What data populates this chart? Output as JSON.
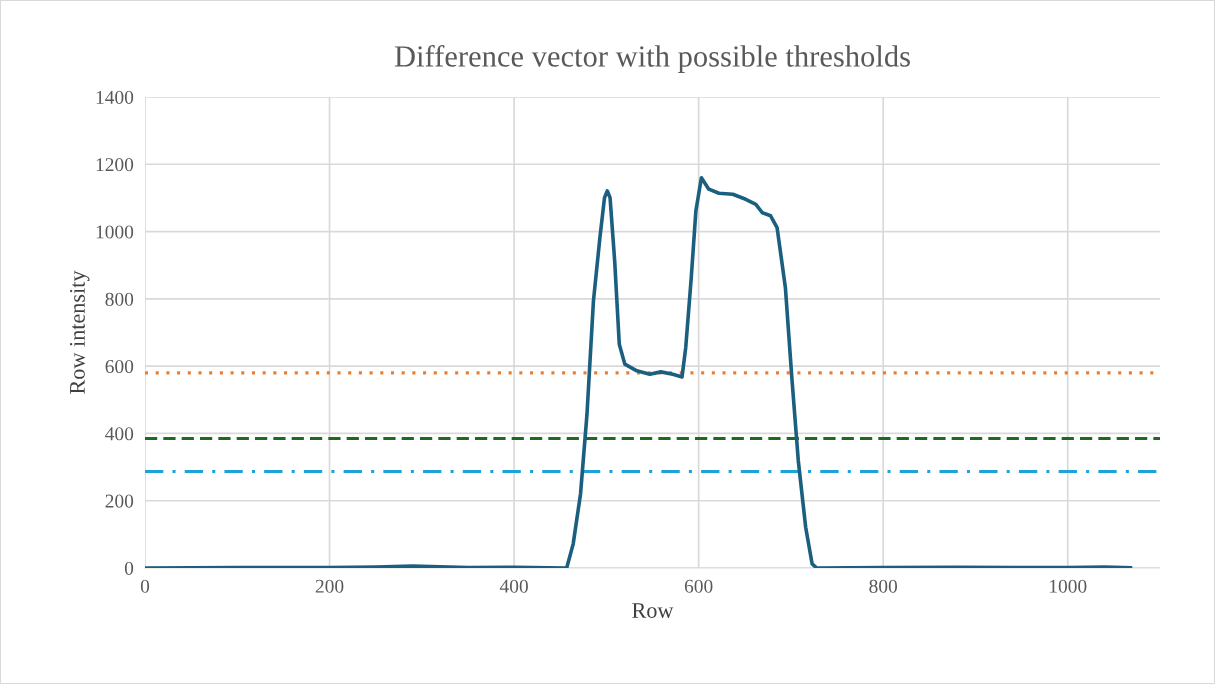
{
  "chart_data": {
    "type": "line",
    "title": "Difference vector with possible thresholds",
    "xlabel": "Row",
    "ylabel": "Row intensity",
    "xlim": [
      0,
      1100
    ],
    "xticks": [
      0,
      200,
      400,
      600,
      800,
      1000
    ],
    "ylim": [
      0,
      1400
    ],
    "yticks": [
      0,
      200,
      400,
      600,
      800,
      1000,
      1200,
      1400
    ],
    "grid": true,
    "legend": false,
    "marker": "none",
    "series": [
      {
        "color": "#1b5f80",
        "line_style": "solid",
        "x": [
          0,
          100,
          200,
          250,
          290,
          350,
          400,
          457,
          464,
          472,
          479,
          486,
          493,
          498,
          501,
          504,
          509,
          514,
          520,
          533,
          547,
          559,
          572,
          582,
          586,
          592,
          597,
          603,
          611,
          622,
          637,
          651,
          662,
          669,
          678,
          685,
          694,
          701,
          708,
          716,
          723,
          728,
          800,
          880,
          1000,
          1040,
          1068
        ],
        "values": [
          0,
          1,
          1,
          3,
          6,
          1,
          2,
          0,
          71,
          220,
          457,
          794,
          982,
          1101,
          1121,
          1101,
          913,
          665,
          606,
          586,
          576,
          583,
          576,
          568,
          655,
          863,
          1061,
          1160,
          1126,
          1114,
          1111,
          1096,
          1081,
          1056,
          1047,
          1012,
          834,
          566,
          319,
          121,
          12,
          0,
          1,
          2,
          1,
          3,
          1
        ]
      }
    ],
    "ref_lines": [
      {
        "axis": "y",
        "value": 580,
        "color": "#ed7d31",
        "line_style": "dotted"
      },
      {
        "axis": "y",
        "value": 385,
        "color": "#1e6b1e",
        "line_style": "dashed"
      },
      {
        "axis": "y",
        "value": 287,
        "color": "#1ea3d8",
        "line_style": "dashdot"
      }
    ]
  }
}
